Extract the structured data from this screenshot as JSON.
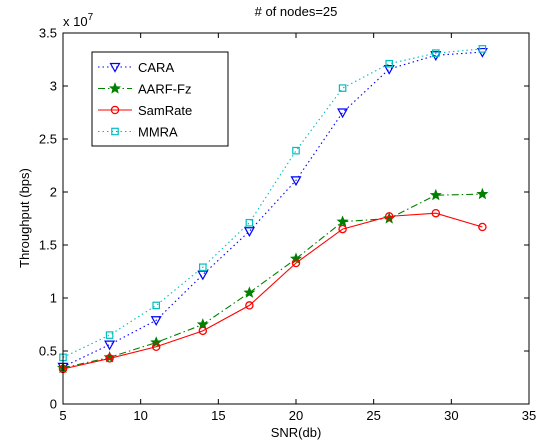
{
  "chart_data": {
    "type": "line",
    "title": "# of nodes=25",
    "xlabel": "SNR(db)",
    "ylabel": "Throughput (bps)",
    "y_multiplier_label": "x 10",
    "y_multiplier_exponent": "7",
    "xlim": [
      5,
      35
    ],
    "ylim": [
      0,
      3.5
    ],
    "y_scale": 10000000,
    "xticks": [
      5,
      10,
      15,
      20,
      25,
      30,
      35
    ],
    "yticks": [
      0,
      0.5,
      1,
      1.5,
      2,
      2.5,
      3,
      3.5
    ],
    "ytick_labels": [
      "0",
      "0.5",
      "1",
      "1.5",
      "2",
      "2.5",
      "3",
      "3.5"
    ],
    "grid": false,
    "legend_position": "top-left",
    "series": [
      {
        "name": "CARA",
        "color": "#0000ff",
        "line_style": "dotted",
        "marker": "triangle-down",
        "x": [
          5,
          8,
          11,
          14,
          17,
          20,
          23,
          26,
          29,
          32
        ],
        "y": [
          0.35,
          0.56,
          0.79,
          1.22,
          1.63,
          2.11,
          2.75,
          3.16,
          3.29,
          3.32
        ]
      },
      {
        "name": "AARF-Fz",
        "color": "#008000",
        "line_style": "dashdot",
        "marker": "star",
        "x": [
          5,
          8,
          11,
          14,
          17,
          20,
          23,
          26,
          29,
          32
        ],
        "y": [
          0.34,
          0.44,
          0.58,
          0.75,
          1.05,
          1.37,
          1.72,
          1.75,
          1.97,
          1.98
        ]
      },
      {
        "name": "SamRate",
        "color": "#ff0000",
        "line_style": "solid",
        "marker": "circle",
        "x": [
          5,
          8,
          11,
          14,
          17,
          20,
          23,
          26,
          29,
          32
        ],
        "y": [
          0.33,
          0.43,
          0.54,
          0.69,
          0.93,
          1.33,
          1.65,
          1.77,
          1.8,
          1.67
        ]
      },
      {
        "name": "MMRA",
        "color": "#00bfbf",
        "line_style": "dotted",
        "marker": "square",
        "x": [
          5,
          8,
          11,
          14,
          17,
          20,
          23,
          26,
          29,
          32
        ],
        "y": [
          0.44,
          0.65,
          0.93,
          1.29,
          1.71,
          2.39,
          2.98,
          3.21,
          3.31,
          3.35
        ]
      }
    ]
  }
}
